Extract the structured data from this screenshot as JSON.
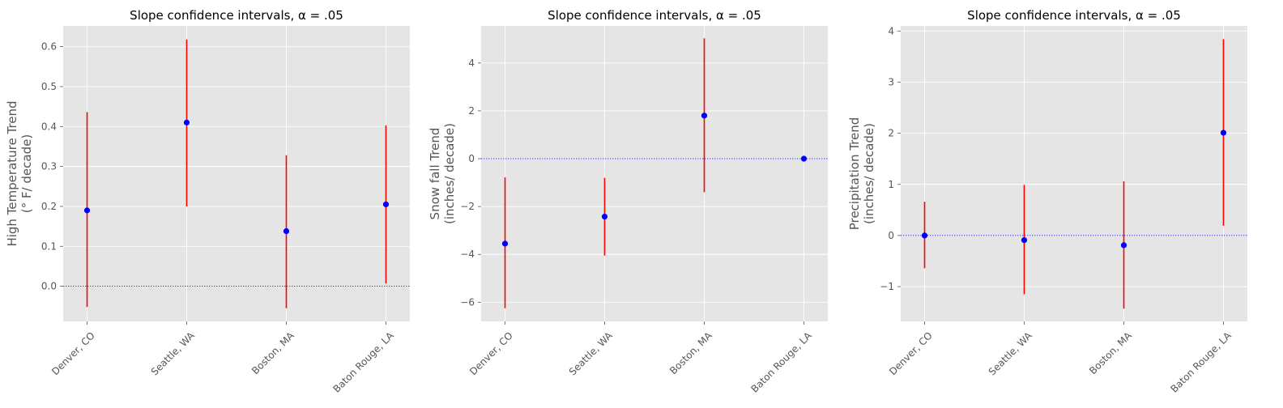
{
  "chart_data": [
    {
      "type": "errorbar",
      "title": "Slope confidence intervals, α = .05",
      "ylabel_lines": [
        "High Temperature Trend",
        "(° F/ decade)"
      ],
      "categories": [
        "Denver, CO",
        "Seattle, WA",
        "Boston, MA",
        "Baton Rouge, LA"
      ],
      "values": [
        0.19,
        0.41,
        0.138,
        0.205
      ],
      "lower": [
        -0.052,
        0.2,
        -0.055,
        0.007
      ],
      "upper": [
        0.436,
        0.618,
        0.328,
        0.403
      ],
      "ylim": [
        -0.088,
        0.652
      ],
      "yticks": [
        0.0,
        0.1,
        0.2,
        0.3,
        0.4,
        0.5,
        0.6
      ],
      "ytick_labels": [
        "0.0",
        "0.1",
        "0.2",
        "0.3",
        "0.4",
        "0.5",
        "0.6"
      ],
      "reference_line": 0,
      "point_color": "#0000ff",
      "bar_color": "#ff0000",
      "reference_color": "#0000ff",
      "grid": true
    },
    {
      "type": "errorbar",
      "title": "Slope confidence intervals, α = .05",
      "ylabel_lines": [
        "Snow fall Trend",
        "(inches/ decade)"
      ],
      "categories": [
        "Denver, CO",
        "Seattle, WA",
        "Boston, MA",
        "Baton Rouge, LA"
      ],
      "values": [
        -3.55,
        -2.42,
        1.8,
        0.0
      ],
      "lower": [
        -6.25,
        -4.05,
        -1.4,
        0.0
      ],
      "upper": [
        -0.78,
        -0.8,
        5.03,
        0.0
      ],
      "ylim": [
        -6.8,
        5.55
      ],
      "yticks": [
        -6,
        -4,
        -2,
        0,
        2,
        4
      ],
      "ytick_labels": [
        "−6",
        "−4",
        "−2",
        "0",
        "2",
        "4"
      ],
      "reference_line": 0,
      "point_color": "#0000ff",
      "bar_color": "#ff0000",
      "reference_color": "#0000ff",
      "grid": true
    },
    {
      "type": "errorbar",
      "title": "Slope confidence intervals, α = .05",
      "ylabel_lines": [
        "Precipitation Trend",
        "(inches/ decade)"
      ],
      "categories": [
        "Denver, CO",
        "Seattle, WA",
        "Boston, MA",
        "Baton Rouge, LA"
      ],
      "values": [
        0.0,
        -0.09,
        -0.19,
        2.01
      ],
      "lower": [
        -0.64,
        -1.15,
        -1.43,
        0.19
      ],
      "upper": [
        0.66,
        0.99,
        1.06,
        3.84
      ],
      "ylim": [
        -1.68,
        4.1
      ],
      "yticks": [
        -1,
        0,
        1,
        2,
        3,
        4
      ],
      "ytick_labels": [
        "−1",
        "0",
        "1",
        "2",
        "3",
        "4"
      ],
      "reference_line": 0,
      "point_color": "#0000ff",
      "bar_color": "#ff0000",
      "reference_color": "#0000ff",
      "grid": true
    }
  ]
}
